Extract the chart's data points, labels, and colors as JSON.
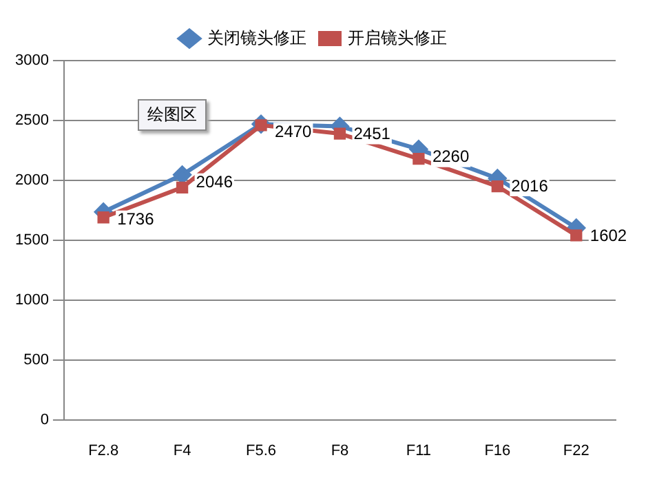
{
  "chart_data": {
    "type": "line",
    "categories": [
      "F2.8",
      "F4",
      "F5.6",
      "F8",
      "F11",
      "F16",
      "F22"
    ],
    "series": [
      {
        "name": "关闭镜头修正",
        "color": "#4f81bd",
        "marker": "diamond",
        "values": [
          1736,
          2046,
          2470,
          2451,
          2260,
          2016,
          1602
        ],
        "value_labels": [
          "1736",
          "2046",
          "2470",
          "2451",
          "2260",
          "2016",
          "1602"
        ]
      },
      {
        "name": "开启镜头修正",
        "color": "#c0504d",
        "marker": "square",
        "values": [
          1690,
          1940,
          2460,
          2390,
          2180,
          1950,
          1540
        ]
      }
    ],
    "ylim": [
      0,
      3000
    ],
    "yticks": [
      0,
      500,
      1000,
      1500,
      2000,
      2500,
      3000
    ],
    "grid": "y",
    "legend": "top",
    "annotations": [
      "绘图区"
    ]
  }
}
